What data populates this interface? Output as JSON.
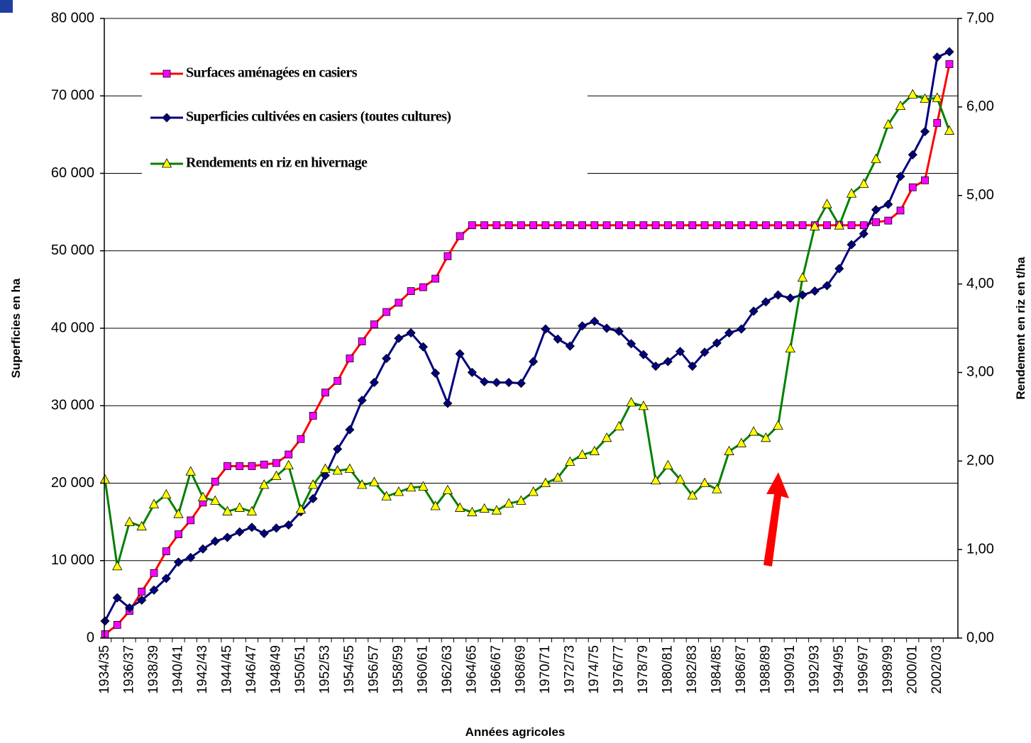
{
  "chart_data": {
    "type": "line",
    "categories": [
      "1934/35",
      null,
      "1936/37",
      null,
      "1938/39",
      null,
      "1940/41",
      null,
      "1942/43",
      null,
      "1944/45",
      null,
      "1946/47",
      null,
      "1948/49",
      null,
      "1950/51",
      null,
      "1952/53",
      null,
      "1954/55",
      null,
      "1956/57",
      null,
      "1958/59",
      null,
      "1960/61",
      null,
      "1962/63",
      null,
      "1964/65",
      null,
      "1966/67",
      null,
      "1968/69",
      null,
      "1970/71",
      null,
      "1972/73",
      null,
      "1974/75",
      null,
      "1976/77",
      null,
      "1978/79",
      null,
      "1980/81",
      null,
      "1982/83",
      null,
      "1984/85",
      null,
      "1986/87",
      null,
      "1988/89",
      null,
      "1990/91",
      null,
      "1992/93",
      null,
      "1994/95",
      null,
      "1996/97",
      null,
      "1998/99",
      null,
      "2000/01",
      null,
      "2002/03",
      null
    ],
    "x_label": "Années agricoles",
    "y_label": "Superficies en ha",
    "y2_label": "Rendement en riz en t/ha",
    "ylim": [
      0,
      80000
    ],
    "yticks": [
      0,
      {
        "value": 10000,
        "label": "10 000"
      },
      {
        "value": 20000,
        "label": "20 000"
      },
      {
        "value": 30000,
        "label": "30 000"
      },
      {
        "value": 40000,
        "label": "40 000"
      },
      {
        "value": 50000,
        "label": "50 000"
      },
      {
        "value": 60000,
        "label": "60 000"
      },
      {
        "value": 70000,
        "label": "70 000"
      },
      {
        "value": 80000,
        "label": "80 000"
      }
    ],
    "y2lim": [
      0,
      7
    ],
    "y2ticks": [
      {
        "value": 0,
        "label": "0,00"
      },
      {
        "value": 1,
        "label": "1,00"
      },
      {
        "value": 2,
        "label": "2,00"
      },
      {
        "value": 3,
        "label": "3,00"
      },
      {
        "value": 4,
        "label": "4,00"
      },
      {
        "value": 5,
        "label": "5,00"
      },
      {
        "value": 6,
        "label": "6,00"
      },
      {
        "value": 7,
        "label": "7,00"
      }
    ],
    "grid": true,
    "legend": "upper left",
    "series": [
      {
        "name": "Surfaces aménagées en casiers",
        "color": "#ff0000",
        "marker_color": "#ff00ff",
        "marker": "square",
        "values": [
          500,
          1700,
          3500,
          6000,
          8400,
          11200,
          13400,
          15200,
          17500,
          20200,
          22200,
          22200,
          22200,
          22400,
          22600,
          23700,
          25700,
          28700,
          31700,
          33200,
          36100,
          38300,
          40500,
          42100,
          43300,
          44800,
          45300,
          46400,
          49300,
          51900,
          53300,
          53300,
          53300,
          53300,
          53300,
          53300,
          53300,
          53300,
          53300,
          53300,
          53300,
          53300,
          53300,
          53300,
          53300,
          53300,
          53300,
          53300,
          53300,
          53300,
          53300,
          53300,
          53300,
          53300,
          53300,
          53300,
          53300,
          53300,
          53300,
          53300,
          53300,
          53300,
          53300,
          53700,
          53900,
          55200,
          58200,
          59100,
          66500,
          74100
        ]
      },
      {
        "name": "Superficies cultivées en casiers (toutes cultures)",
        "color": "#000080",
        "marker_color": "#000080",
        "marker": "diamond",
        "values": [
          2200,
          5200,
          3900,
          4900,
          6200,
          7700,
          9800,
          10400,
          11500,
          12500,
          13000,
          13700,
          14300,
          13500,
          14200,
          14600,
          16300,
          18000,
          21000,
          24400,
          26900,
          30700,
          33000,
          36100,
          38700,
          39400,
          37600,
          34200,
          30300,
          36700,
          34300,
          33100,
          33000,
          33000,
          32900,
          35700,
          39900,
          38600,
          37700,
          40300,
          40900,
          40000,
          39600,
          38000,
          36600,
          35100,
          35700,
          37000,
          35100,
          36900,
          38100,
          39400,
          39900,
          42200,
          43400,
          44300,
          43900,
          44300,
          44800,
          45500,
          47700,
          50800,
          52200,
          55300,
          56000,
          59600,
          62400,
          65400,
          75000,
          75700
        ]
      },
      {
        "name": "Rendements en riz en hivernage",
        "color": "#008000",
        "marker_color": "#ffff00",
        "marker": "triangle",
        "axis": "y2",
        "values": [
          1.79,
          0.81,
          1.31,
          1.26,
          1.51,
          1.62,
          1.4,
          1.88,
          1.59,
          1.55,
          1.43,
          1.47,
          1.43,
          1.73,
          1.83,
          1.95,
          1.45,
          1.73,
          1.91,
          1.89,
          1.91,
          1.73,
          1.76,
          1.6,
          1.65,
          1.7,
          1.71,
          1.49,
          1.67,
          1.47,
          1.42,
          1.46,
          1.44,
          1.52,
          1.55,
          1.65,
          1.75,
          1.81,
          1.99,
          2.07,
          2.11,
          2.26,
          2.39,
          2.66,
          2.62,
          1.78,
          1.95,
          1.79,
          1.61,
          1.75,
          1.68,
          2.11,
          2.2,
          2.33,
          2.26,
          2.4,
          3.27,
          4.07,
          4.65,
          4.9,
          4.66,
          5.02,
          5.13,
          5.41,
          5.8,
          6.01,
          6.14,
          6.09,
          6.1,
          5.73
        ]
      }
    ]
  }
}
